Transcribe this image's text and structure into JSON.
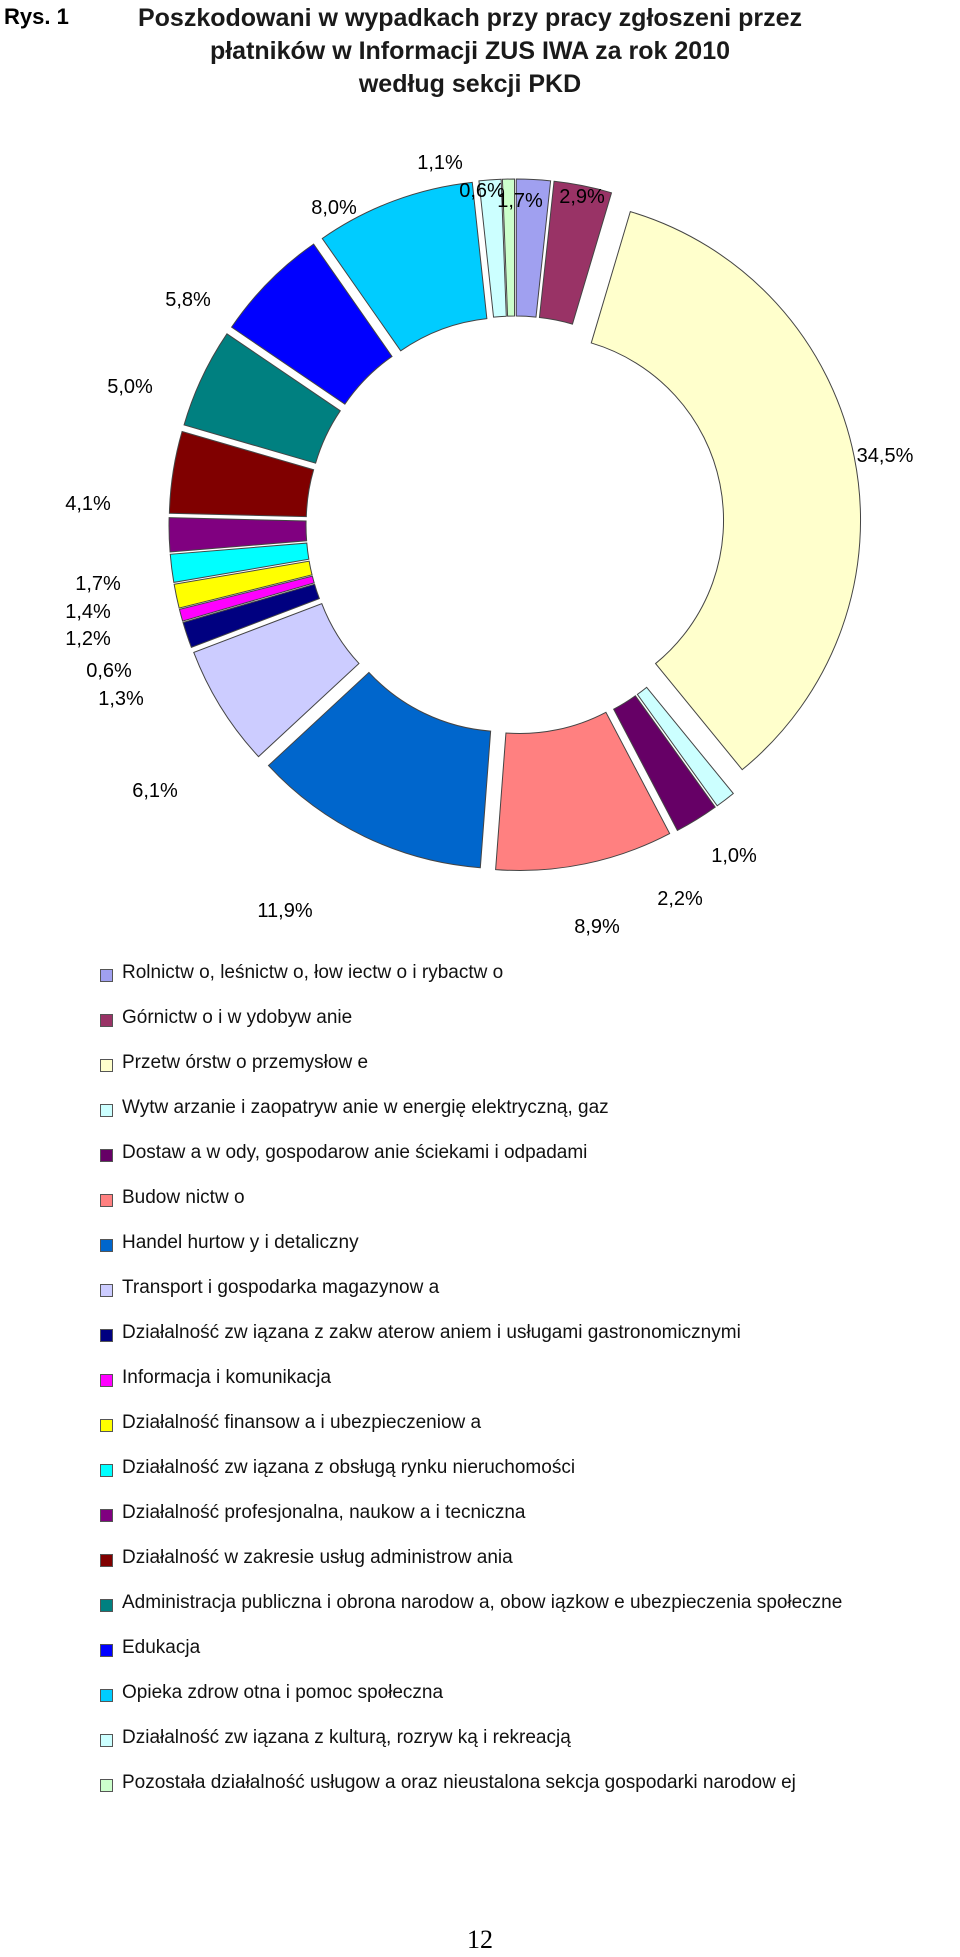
{
  "figure_label": "Rys. 1",
  "title_lines": [
    "Poszkodowani w wypadkach przy pracy zgłoszeni przez",
    "płatników w Informacji ZUS IWA za rok 2010",
    "według sekcji PKD"
  ],
  "page_number": "12",
  "chart_data": {
    "type": "pie",
    "variant": "exploded-donut",
    "title": "Poszkodowani w wypadkach przy pracy zgłoszeni przez płatników w Informacji ZUS IWA za rok 2010 według sekcji PKD",
    "legend_position": "bottom",
    "slices": [
      {
        "name": "Rolnictwo, leśnictwo, łowiectwo i rybactwo",
        "legend_text": "Rolnictw o, leśnictw o, łow iectw o i rybactw o",
        "value": 1.7,
        "label": "1,7%",
        "color": "#a0a0f0"
      },
      {
        "name": "Górnictwo i wydobywanie",
        "legend_text": "Górnictw o i w ydobyw anie",
        "value": 2.9,
        "label": "2,9%",
        "color": "#993366"
      },
      {
        "name": "Przetwórstwo przemysłowe",
        "legend_text": "Przetw órstw o przemysłow e",
        "value": 34.5,
        "label": "34,5%",
        "color": "#ffffcc"
      },
      {
        "name": "Wytwarzanie i zaopatrywanie w energię elektryczną, gaz",
        "legend_text": "Wytw arzanie i zaopatryw anie w  energię elektryczną, gaz",
        "value": 1.0,
        "label": "1,0%",
        "color": "#ccffff"
      },
      {
        "name": "Dostawa wody, gospodarowanie ściekami i odpadami",
        "legend_text": "Dostaw a w ody, gospodarow anie ściekami i odpadami",
        "value": 2.2,
        "label": "2,2%",
        "color": "#660066"
      },
      {
        "name": "Budownictwo",
        "legend_text": "Budow nictw o",
        "value": 8.9,
        "label": "8,9%",
        "color": "#ff8080"
      },
      {
        "name": "Handel hurtowy i detaliczny",
        "legend_text": "Handel hurtow y i detaliczny",
        "value": 11.9,
        "label": "11,9%",
        "color": "#0066cc"
      },
      {
        "name": "Transport i gospodarka magazynowa",
        "legend_text": "Transport i gospodarka magazynow a",
        "value": 6.1,
        "label": "6,1%",
        "color": "#ccccff"
      },
      {
        "name": "Działalność związana z zakwaterowaniem i usługami gastronomicznymi",
        "legend_text": "Działalność zw iązana z zakw aterow aniem i usługami gastronomicznymi",
        "value": 1.3,
        "label": "1,3%",
        "color": "#000080"
      },
      {
        "name": "Informacja i komunikacja",
        "legend_text": "Informacja i komunikacja",
        "value": 0.6,
        "label": "0,6%",
        "color": "#ff00ff"
      },
      {
        "name": "Działalność finansowa i ubezpieczeniowa",
        "legend_text": "Działalność finansow a i ubezpieczeniow a",
        "value": 1.2,
        "label": "1,2%",
        "color": "#ffff00"
      },
      {
        "name": "Działalność związana z obsługą rynku nieruchomości",
        "legend_text": "Działalność zw iązana z obsługą rynku nieruchomości",
        "value": 1.4,
        "label": "1,4%",
        "color": "#00ffff"
      },
      {
        "name": "Działalność profesjonalna, naukowa i tecniczna",
        "legend_text": "Działalność profesjonalna, naukow a i tecniczna",
        "value": 1.7,
        "label": "1,7%",
        "color": "#800080"
      },
      {
        "name": "Działalność w zakresie usług administrowania",
        "legend_text": "Działalność w  zakresie usług administrow ania",
        "value": 4.1,
        "label": "4,1%",
        "color": "#800000"
      },
      {
        "name": "Administracja publiczna i obrona narodowa, obowiązkowe ubezpieczenia społeczne",
        "legend_text": "Administracja publiczna i obrona narodow a, obow iązkow e ubezpieczenia społeczne",
        "value": 5.0,
        "label": "5,0%",
        "color": "#008080"
      },
      {
        "name": "Edukacja",
        "legend_text": "Edukacja",
        "value": 5.8,
        "label": "5,8%",
        "color": "#0000ff"
      },
      {
        "name": "Opieka zdrowotna i pomoc społeczna",
        "legend_text": "Opieka zdrow otna i pomoc społeczna",
        "value": 8.0,
        "label": "8,0%",
        "color": "#00ccff"
      },
      {
        "name": "Działalność związana z kulturą, rozrywką i rekreacją",
        "legend_text": "Działalność zw iązana z kulturą, rozryw ką i rekreacją",
        "value": 1.1,
        "label": "1,1%",
        "color": "#ccffff"
      },
      {
        "name": "Pozostała działalność usługowa oraz nieustalona sekcja gospodarki narodowej",
        "legend_text": "Pozostała działalność usługow a oraz nieustalona sekcja gospodarki narodow ej",
        "value": 0.6,
        "label": "0,6%",
        "color": "#ccffcc"
      }
    ]
  }
}
